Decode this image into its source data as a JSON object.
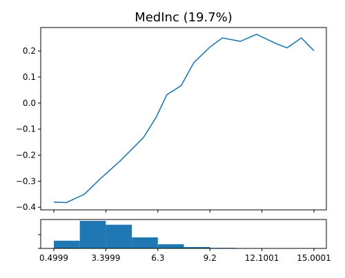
{
  "chart_data": [
    {
      "type": "line",
      "title": "MedInc (19.7%)",
      "xlabel": "",
      "ylabel": "",
      "xlim": [
        0.4999,
        15.0001
      ],
      "ylim": [
        -0.41,
        0.29
      ],
      "y_ticks": [
        -0.4,
        -0.3,
        -0.2,
        -0.1,
        0.0,
        0.1,
        0.2
      ],
      "y_tick_labels": [
        "−0.4",
        "−0.3",
        "−0.2",
        "−0.1",
        "0.0",
        "0.1",
        "0.2"
      ],
      "grid": false,
      "color": "#1f77b4",
      "series": [
        {
          "x": [
            0.4999,
            1.2,
            2.2,
            3.1,
            4.2,
            5.5,
            6.2,
            6.8,
            7.6,
            8.3,
            9.2,
            9.9,
            10.9,
            11.8,
            12.9,
            13.5,
            14.3,
            15.0001
          ],
          "y": [
            -0.38,
            -0.382,
            -0.35,
            -0.29,
            -0.222,
            -0.132,
            -0.055,
            0.032,
            0.067,
            0.155,
            0.215,
            0.25,
            0.237,
            0.264,
            0.228,
            0.212,
            0.25,
            0.201
          ]
        }
      ]
    },
    {
      "type": "bar",
      "title": "",
      "xlabel": "",
      "ylabel": "",
      "xlim": [
        0.4999,
        15.0001
      ],
      "x_ticks": [
        0.4999,
        3.3999,
        6.3,
        9.2,
        12.1001,
        15.0001
      ],
      "x_tick_labels": [
        "0.4999",
        "3.3999",
        "6.3",
        "9.2",
        "12.1001",
        "15.0001"
      ],
      "bin_edges": [
        0.4999,
        1.95,
        3.3999,
        4.85,
        6.3,
        7.75,
        9.2,
        10.65,
        12.1001,
        13.55,
        15.0001
      ],
      "values": [
        0.28,
        1.0,
        0.86,
        0.4,
        0.15,
        0.05,
        0.02,
        0.0,
        0.0,
        0.0
      ],
      "grid": false,
      "color": "#1f77b4"
    }
  ]
}
